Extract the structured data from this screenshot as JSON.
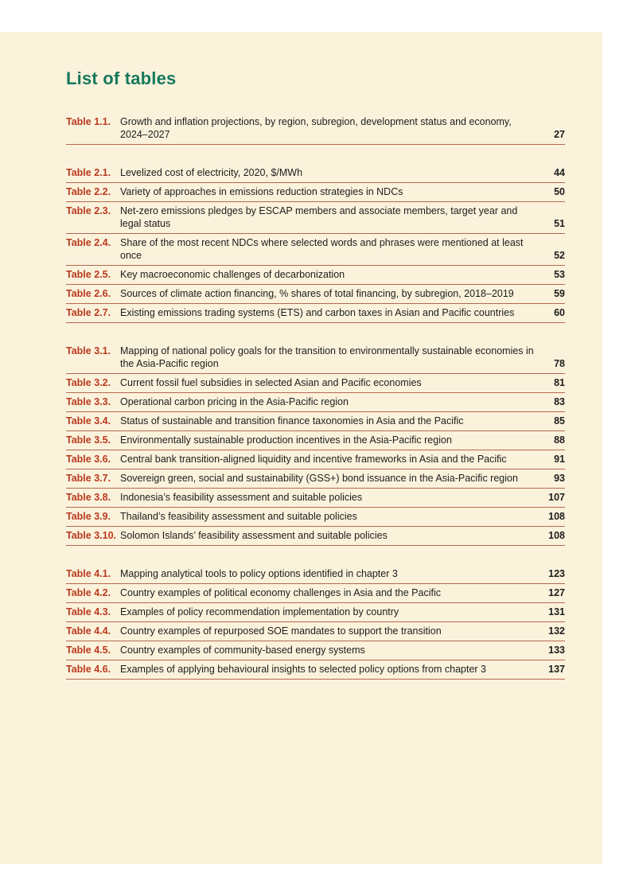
{
  "theme": {
    "page_background": "#fbf2dc",
    "title_color": "#15795c",
    "label_color": "#b93a1e",
    "rule_color": "#b5684f",
    "text_color": "#1d1d1b"
  },
  "toc": {
    "heading": "List of tables",
    "groups": [
      {
        "chapter": "1",
        "entries": [
          {
            "label": "Table 1.1.",
            "title": "Growth and inflation projections, by region, subregion, development status and economy, 2024–2027",
            "page": "27"
          }
        ]
      },
      {
        "chapter": "2",
        "entries": [
          {
            "label": "Table 2.1.",
            "title": "Levelized cost of electricity, 2020, $/MWh",
            "page": "44"
          },
          {
            "label": "Table 2.2.",
            "title": "Variety of approaches in emissions reduction strategies in NDCs",
            "page": "50"
          },
          {
            "label": "Table 2.3.",
            "title": "Net-zero emissions pledges by ESCAP members and associate members, target year and legal status",
            "page": "51"
          },
          {
            "label": "Table 2.4.",
            "title": "Share of the most recent NDCs where selected words and phrases were mentioned at least once",
            "page": "52"
          },
          {
            "label": "Table 2.5.",
            "title": "Key macroeconomic challenges of decarbonization",
            "page": "53"
          },
          {
            "label": "Table 2.6.",
            "title": "Sources of climate action financing, % shares of total financing, by subregion, 2018–2019",
            "page": "59"
          },
          {
            "label": "Table 2.7.",
            "title": "Existing emissions trading systems (ETS) and carbon taxes in Asian and Pacific countries",
            "page": "60"
          }
        ]
      },
      {
        "chapter": "3",
        "entries": [
          {
            "label": "Table 3.1.",
            "title": "Mapping of national policy goals for the transition to environmentally sustainable economies in the Asia-Pacific region",
            "page": "78"
          },
          {
            "label": "Table 3.2.",
            "title": "Current fossil fuel subsidies in selected Asian and Pacific economies",
            "page": "81"
          },
          {
            "label": "Table 3.3.",
            "title": "Operational carbon pricing in the Asia-Pacific region",
            "page": "83"
          },
          {
            "label": "Table 3.4.",
            "title": "Status of sustainable and transition finance taxonomies in Asia and the Pacific",
            "page": "85"
          },
          {
            "label": "Table 3.5.",
            "title": "Environmentally sustainable production incentives in the Asia-Pacific region",
            "page": "88"
          },
          {
            "label": "Table 3.6.",
            "title": "Central bank transition-aligned liquidity and incentive frameworks in Asia and the Pacific",
            "page": "91"
          },
          {
            "label": "Table 3.7.",
            "title": "Sovereign green, social and sustainability (GSS+) bond issuance in the Asia-Pacific region",
            "page": "93"
          },
          {
            "label": "Table 3.8.",
            "title": "Indonesia’s feasibility assessment and suitable policies",
            "page": "107"
          },
          {
            "label": "Table 3.9.",
            "title": "Thailand’s feasibility assessment and suitable policies",
            "page": "108"
          },
          {
            "label": "Table 3.10.",
            "title": "Solomon Islands’ feasibility assessment and suitable policies",
            "page": "108"
          }
        ]
      },
      {
        "chapter": "4",
        "entries": [
          {
            "label": "Table 4.1.",
            "title": "Mapping analytical tools to policy options identified in chapter 3",
            "page": "123"
          },
          {
            "label": "Table 4.2.",
            "title": "Country examples of political economy challenges in Asia and the Pacific",
            "page": "127"
          },
          {
            "label": "Table 4.3.",
            "title": "Examples of policy recommendation implementation by country",
            "page": "131"
          },
          {
            "label": "Table 4.4.",
            "title": "Country examples of repurposed SOE mandates to support the transition",
            "page": "132"
          },
          {
            "label": "Table 4.5.",
            "title": "Country examples of community-based energy systems",
            "page": "133"
          },
          {
            "label": "Table 4.6.",
            "title": "Examples of applying behavioural insights to selected policy options from chapter 3",
            "page": "137"
          }
        ]
      }
    ]
  }
}
